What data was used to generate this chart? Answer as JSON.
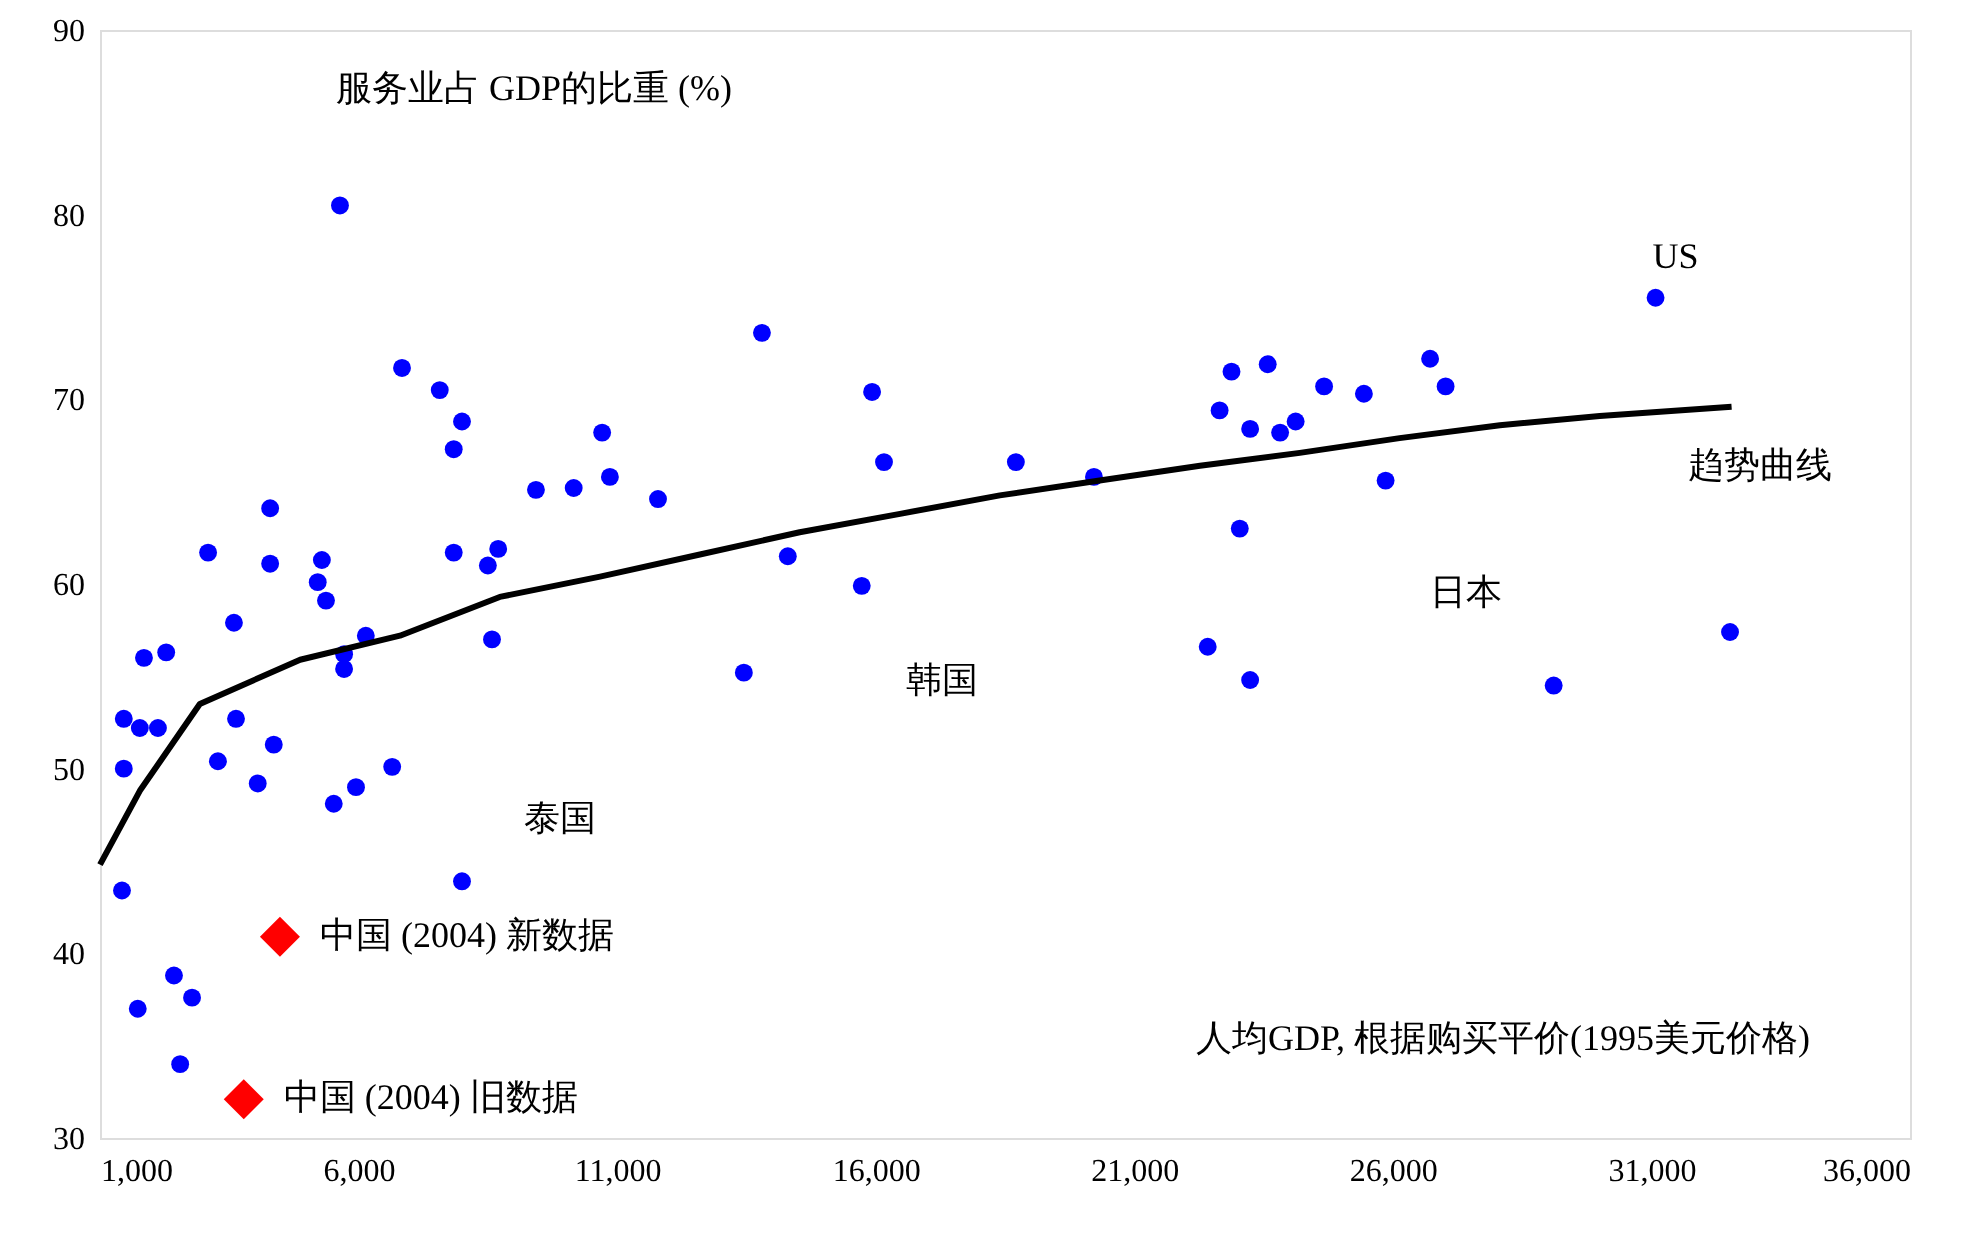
{
  "chart_data": {
    "type": "scatter",
    "xlabel": "人均GDP, 根据购买平价(1995美元价格)",
    "ylabel": "服务业占 GDP的比重 (%)",
    "xlim": [
      1000,
      36000
    ],
    "xticks": [
      {
        "value": 1000,
        "label": "1,000"
      },
      {
        "value": 6000,
        "label": "6,000"
      },
      {
        "value": 11000,
        "label": "11,000"
      },
      {
        "value": 16000,
        "label": "16,000"
      },
      {
        "value": 21000,
        "label": "21,000"
      },
      {
        "value": 26000,
        "label": "26,000"
      },
      {
        "value": 31000,
        "label": "31,000"
      },
      {
        "value": 36000,
        "label": "36,000"
      }
    ],
    "ylim": [
      30,
      90
    ],
    "yticks": [
      30,
      40,
      50,
      60,
      70,
      80,
      90
    ],
    "grid": false,
    "legend": false,
    "series": [
      {
        "color": "#0000ff",
        "marker": "circle",
        "x": [
          1425,
          1460,
          1460,
          1770,
          2120,
          1850,
          2280,
          1730,
          2430,
          2780,
          2550,
          3090,
          3280,
          3590,
          3630,
          4050,
          4290,
          4290,
          4360,
          5210,
          5290,
          5370,
          5520,
          5640,
          5720,
          5720,
          5950,
          6140,
          6650,
          6840,
          7570,
          8000,
          7840,
          7840,
          8500,
          8700,
          8580,
          8000,
          9430,
          10160,
          10710,
          10860,
          11790,
          13450,
          13800,
          14300,
          15730,
          15930,
          16160,
          18710,
          20220,
          22420,
          22650,
          22880,
          23040,
          23240,
          23240,
          23580,
          23820,
          24120,
          24670,
          25440,
          25860,
          26720,
          27020,
          29110,
          31080,
          32520
        ],
        "values": [
          43.4,
          50.0,
          52.7,
          52.2,
          52.2,
          56.0,
          56.3,
          37.0,
          38.8,
          37.6,
          34.0,
          61.7,
          50.4,
          57.9,
          52.7,
          49.2,
          64.1,
          61.1,
          51.3,
          60.1,
          61.3,
          59.1,
          48.1,
          80.5,
          56.2,
          55.4,
          49.0,
          57.2,
          50.1,
          71.7,
          70.5,
          68.8,
          67.3,
          61.7,
          61.0,
          61.9,
          57.0,
          43.9,
          65.1,
          65.2,
          68.2,
          65.8,
          64.6,
          55.2,
          73.6,
          61.5,
          59.9,
          70.4,
          66.6,
          66.6,
          65.8,
          56.6,
          69.4,
          71.5,
          63.0,
          54.8,
          68.4,
          71.9,
          68.2,
          68.8,
          70.7,
          70.3,
          65.6,
          72.2,
          70.7,
          54.5,
          75.5,
          57.4
        ]
      },
      {
        "type": "line",
        "name": "趋势曲线",
        "color": "#000000",
        "line_style": "solid",
        "x": [
          1000,
          1770,
          2930,
          4870,
          6800,
          8730,
          10670,
          12600,
          14530,
          16470,
          18400,
          20330,
          22270,
          24200,
          26130,
          28070,
          30000,
          32550
        ],
        "values": [
          44.8,
          48.8,
          53.5,
          55.9,
          57.2,
          59.3,
          60.4,
          61.6,
          62.8,
          63.8,
          64.8,
          65.6,
          66.4,
          67.1,
          67.9,
          68.6,
          69.1,
          69.6
        ]
      },
      {
        "type": "scatter",
        "name": "中国 (2004) 新数据",
        "color": "#ff0000",
        "marker": "diamond",
        "x": [
          4480
        ],
        "values": [
          40.9
        ]
      },
      {
        "type": "scatter",
        "name": "中国 (2004) 旧数据",
        "color": "#ff0000",
        "marker": "diamond",
        "x": [
          3780
        ],
        "values": [
          32.1
        ]
      }
    ],
    "annotations": [
      {
        "text": "US",
        "x": 31080,
        "y": 75.5
      },
      "日本",
      "韩国",
      "泰国"
    ]
  }
}
